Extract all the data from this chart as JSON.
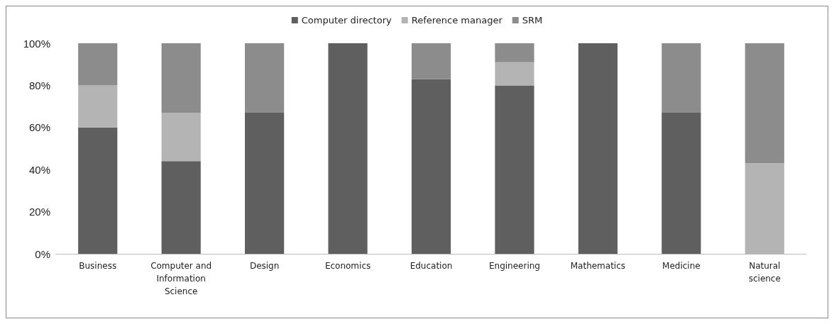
{
  "chart_data": {
    "type": "bar",
    "stacked": true,
    "legend": "top",
    "grid": false,
    "categories": [
      "Business",
      "Computer and Information Science",
      "Design",
      "Economics",
      "Education",
      "Engineering",
      "Mathematics",
      "Medicine",
      "Natural science"
    ],
    "series": [
      {
        "name": "Computer directory",
        "color": "#5f5f5f",
        "values": [
          60,
          44,
          67,
          100,
          83,
          80,
          100,
          67,
          0
        ]
      },
      {
        "name": "Reference manager",
        "color": "#b4b4b4",
        "values": [
          20,
          23,
          0,
          0,
          0,
          11,
          0,
          0,
          43
        ]
      },
      {
        "name": "SRM",
        "color": "#8c8c8c",
        "values": [
          20,
          33,
          33,
          0,
          17,
          9,
          0,
          33,
          57
        ]
      }
    ],
    "ylim": [
      0,
      100
    ],
    "yticks": [
      {
        "value": 0,
        "label": "0%"
      },
      {
        "value": 20,
        "label": "20%"
      },
      {
        "value": 40,
        "label": "40%"
      },
      {
        "value": 60,
        "label": "60%"
      },
      {
        "value": 80,
        "label": "80%"
      },
      {
        "value": 100,
        "label": "100%"
      }
    ]
  }
}
